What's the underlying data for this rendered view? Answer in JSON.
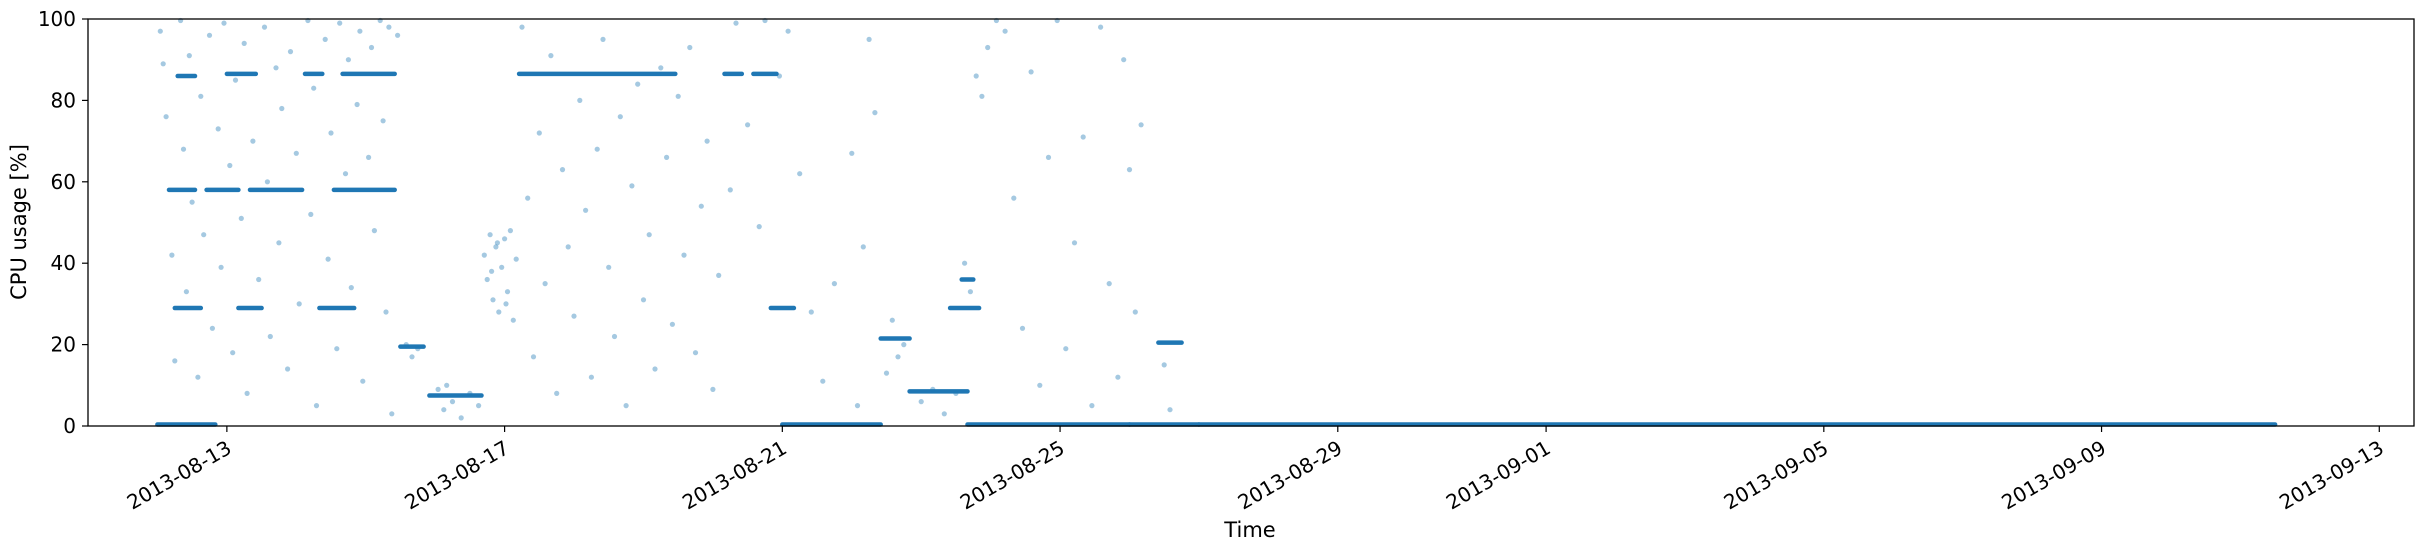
{
  "chart_data": {
    "type": "scatter",
    "title": "",
    "xlabel": "Time",
    "ylabel": "CPU usage [%]",
    "xlim": [
      "2013-08-11T00:00",
      "2013-09-13T12:00"
    ],
    "ylim": [
      0,
      100
    ],
    "grid": false,
    "color": "#1f77b4",
    "point_alpha": 0.4,
    "x_ticks": [
      "2013-08-13",
      "2013-08-17",
      "2013-08-21",
      "2013-08-25",
      "2013-08-29",
      "2013-09-01",
      "2013-09-05",
      "2013-09-09",
      "2013-09-13"
    ],
    "y_ticks": [
      0,
      20,
      40,
      60,
      80,
      100
    ],
    "series": [
      {
        "segments": [
          {
            "start": "2013-08-12T00:00",
            "end": "2013-08-12T20:00",
            "y": 0.3
          },
          {
            "start": "2013-08-12T04:00",
            "end": "2013-08-12T13:00",
            "y": 58
          },
          {
            "start": "2013-08-12T06:00",
            "end": "2013-08-12T15:00",
            "y": 29
          },
          {
            "start": "2013-08-12T07:00",
            "end": "2013-08-12T13:00",
            "y": 86
          },
          {
            "start": "2013-08-12T17:00",
            "end": "2013-08-13T04:00",
            "y": 58
          },
          {
            "start": "2013-08-13T00:00",
            "end": "2013-08-13T10:00",
            "y": 86.5
          },
          {
            "start": "2013-08-13T04:00",
            "end": "2013-08-13T12:00",
            "y": 29
          },
          {
            "start": "2013-08-13T08:00",
            "end": "2013-08-14T02:00",
            "y": 58
          },
          {
            "start": "2013-08-14T03:00",
            "end": "2013-08-14T09:00",
            "y": 86.5
          },
          {
            "start": "2013-08-14T08:00",
            "end": "2013-08-14T20:00",
            "y": 29
          },
          {
            "start": "2013-08-14T13:00",
            "end": "2013-08-15T10:00",
            "y": 58
          },
          {
            "start": "2013-08-14T16:00",
            "end": "2013-08-15T10:00",
            "y": 86.5
          },
          {
            "start": "2013-08-15T12:00",
            "end": "2013-08-15T20:00",
            "y": 19.5
          },
          {
            "start": "2013-08-15T22:00",
            "end": "2013-08-16T16:00",
            "y": 7.5
          },
          {
            "start": "2013-08-17T05:00",
            "end": "2013-08-19T11:00",
            "y": 86.5
          },
          {
            "start": "2013-08-20T04:00",
            "end": "2013-08-20T10:00",
            "y": 86.5
          },
          {
            "start": "2013-08-20T14:00",
            "end": "2013-08-20T22:00",
            "y": 86.5
          },
          {
            "start": "2013-08-20T20:00",
            "end": "2013-08-21T04:00",
            "y": 29
          },
          {
            "start": "2013-08-21T00:00",
            "end": "2013-08-22T10:00",
            "y": 0.3
          },
          {
            "start": "2013-08-22T10:00",
            "end": "2013-08-22T20:00",
            "y": 21.5
          },
          {
            "start": "2013-08-22T20:00",
            "end": "2013-08-23T16:00",
            "y": 8.5
          },
          {
            "start": "2013-08-23T10:00",
            "end": "2013-08-23T20:00",
            "y": 29
          },
          {
            "start": "2013-08-23T14:00",
            "end": "2013-08-23T18:00",
            "y": 36
          },
          {
            "start": "2013-08-23T16:00",
            "end": "2013-08-26T00:00",
            "y": 0.3
          },
          {
            "start": "2013-08-26T00:00",
            "end": "2013-08-27T00:00",
            "y": 0.2
          },
          {
            "start": "2013-08-26T10:00",
            "end": "2013-08-26T18:00",
            "y": 20.5
          },
          {
            "start": "2013-08-27T00:00",
            "end": "2013-09-11T12:00",
            "y": 0
          }
        ],
        "points": [
          [
            "2013-08-12T01:00",
            97
          ],
          [
            "2013-08-12T02:00",
            89
          ],
          [
            "2013-08-12T03:00",
            76
          ],
          [
            "2013-08-12T05:00",
            42
          ],
          [
            "2013-08-12T06:00",
            16
          ],
          [
            "2013-08-12T08:00",
            100
          ],
          [
            "2013-08-12T09:00",
            68
          ],
          [
            "2013-08-12T10:00",
            33
          ],
          [
            "2013-08-12T11:00",
            91
          ],
          [
            "2013-08-12T12:00",
            55
          ],
          [
            "2013-08-12T14:00",
            12
          ],
          [
            "2013-08-12T15:00",
            81
          ],
          [
            "2013-08-12T16:00",
            47
          ],
          [
            "2013-08-12T18:00",
            96
          ],
          [
            "2013-08-12T19:00",
            24
          ],
          [
            "2013-08-12T21:00",
            73
          ],
          [
            "2013-08-12T22:00",
            39
          ],
          [
            "2013-08-12T23:00",
            99
          ],
          [
            "2013-08-13T01:00",
            64
          ],
          [
            "2013-08-13T02:00",
            18
          ],
          [
            "2013-08-13T03:00",
            85
          ],
          [
            "2013-08-13T05:00",
            51
          ],
          [
            "2013-08-13T06:00",
            94
          ],
          [
            "2013-08-13T07:00",
            8
          ],
          [
            "2013-08-13T09:00",
            70
          ],
          [
            "2013-08-13T11:00",
            36
          ],
          [
            "2013-08-13T13:00",
            98
          ],
          [
            "2013-08-13T14:00",
            60
          ],
          [
            "2013-08-13T15:00",
            22
          ],
          [
            "2013-08-13T17:00",
            88
          ],
          [
            "2013-08-13T18:00",
            45
          ],
          [
            "2013-08-13T19:00",
            78
          ],
          [
            "2013-08-13T21:00",
            14
          ],
          [
            "2013-08-13T22:00",
            92
          ],
          [
            "2013-08-14T00:00",
            67
          ],
          [
            "2013-08-14T01:00",
            30
          ],
          [
            "2013-08-14T04:00",
            100
          ],
          [
            "2013-08-14T05:00",
            52
          ],
          [
            "2013-08-14T06:00",
            83
          ],
          [
            "2013-08-14T07:00",
            5
          ],
          [
            "2013-08-14T10:00",
            95
          ],
          [
            "2013-08-14T11:00",
            41
          ],
          [
            "2013-08-14T12:00",
            72
          ],
          [
            "2013-08-14T14:00",
            19
          ],
          [
            "2013-08-14T15:00",
            99
          ],
          [
            "2013-08-14T17:00",
            62
          ],
          [
            "2013-08-14T18:00",
            90
          ],
          [
            "2013-08-14T19:00",
            34
          ],
          [
            "2013-08-14T21:00",
            79
          ],
          [
            "2013-08-14T22:00",
            97
          ],
          [
            "2013-08-14T23:00",
            11
          ],
          [
            "2013-08-15T01:00",
            66
          ],
          [
            "2013-08-15T02:00",
            93
          ],
          [
            "2013-08-15T03:00",
            48
          ],
          [
            "2013-08-15T05:00",
            100
          ],
          [
            "2013-08-15T06:00",
            75
          ],
          [
            "2013-08-15T07:00",
            28
          ],
          [
            "2013-08-15T08:00",
            98
          ],
          [
            "2013-08-15T09:00",
            3
          ],
          [
            "2013-08-15T11:00",
            96
          ],
          [
            "2013-08-15T14:00",
            20
          ],
          [
            "2013-08-15T16:00",
            17
          ],
          [
            "2013-08-15T18:00",
            19
          ],
          [
            "2013-08-16T01:00",
            9
          ],
          [
            "2013-08-16T03:00",
            4
          ],
          [
            "2013-08-16T06:00",
            6
          ],
          [
            "2013-08-16T09:00",
            2
          ],
          [
            "2013-08-16T12:00",
            8
          ],
          [
            "2013-08-16T15:00",
            5
          ],
          [
            "2013-08-16T04:00",
            10
          ],
          [
            "2013-08-16T17:00",
            42
          ],
          [
            "2013-08-16T18:00",
            36
          ],
          [
            "2013-08-16T19:00",
            47
          ],
          [
            "2013-08-16T20:00",
            31
          ],
          [
            "2013-08-16T21:00",
            44
          ],
          [
            "2013-08-16T22:00",
            28
          ],
          [
            "2013-08-16T23:00",
            39
          ],
          [
            "2013-08-17T00:00",
            46
          ],
          [
            "2013-08-17T01:00",
            33
          ],
          [
            "2013-08-17T02:00",
            48
          ],
          [
            "2013-08-17T03:00",
            26
          ],
          [
            "2013-08-17T04:00",
            41
          ],
          [
            "2013-08-16T19:30",
            38
          ],
          [
            "2013-08-16T21:30",
            45
          ],
          [
            "2013-08-17T00:30",
            30
          ],
          [
            "2013-08-17T06:00",
            98
          ],
          [
            "2013-08-17T08:00",
            56
          ],
          [
            "2013-08-17T10:00",
            17
          ],
          [
            "2013-08-17T12:00",
            72
          ],
          [
            "2013-08-17T14:00",
            35
          ],
          [
            "2013-08-17T16:00",
            91
          ],
          [
            "2013-08-17T18:00",
            8
          ],
          [
            "2013-08-17T20:00",
            63
          ],
          [
            "2013-08-17T22:00",
            44
          ],
          [
            "2013-08-18T00:00",
            27
          ],
          [
            "2013-08-18T02:00",
            80
          ],
          [
            "2013-08-18T04:00",
            53
          ],
          [
            "2013-08-18T06:00",
            12
          ],
          [
            "2013-08-18T08:00",
            68
          ],
          [
            "2013-08-18T10:00",
            95
          ],
          [
            "2013-08-18T12:00",
            39
          ],
          [
            "2013-08-18T14:00",
            22
          ],
          [
            "2013-08-18T16:00",
            76
          ],
          [
            "2013-08-18T18:00",
            5
          ],
          [
            "2013-08-18T20:00",
            59
          ],
          [
            "2013-08-18T22:00",
            84
          ],
          [
            "2013-08-19T00:00",
            31
          ],
          [
            "2013-08-19T02:00",
            47
          ],
          [
            "2013-08-19T04:00",
            14
          ],
          [
            "2013-08-19T06:00",
            88
          ],
          [
            "2013-08-19T08:00",
            66
          ],
          [
            "2013-08-19T10:00",
            25
          ],
          [
            "2013-08-19T12:00",
            81
          ],
          [
            "2013-08-19T14:00",
            42
          ],
          [
            "2013-08-19T16:00",
            93
          ],
          [
            "2013-08-19T18:00",
            18
          ],
          [
            "2013-08-19T20:00",
            54
          ],
          [
            "2013-08-19T22:00",
            70
          ],
          [
            "2013-08-20T00:00",
            9
          ],
          [
            "2013-08-20T02:00",
            37
          ],
          [
            "2013-08-20T06:00",
            58
          ],
          [
            "2013-08-20T08:00",
            99
          ],
          [
            "2013-08-20T12:00",
            74
          ],
          [
            "2013-08-20T16:00",
            49
          ],
          [
            "2013-08-20T18:00",
            100
          ],
          [
            "2013-08-20T23:00",
            86
          ],
          [
            "2013-08-21T02:00",
            97
          ],
          [
            "2013-08-21T06:00",
            62
          ],
          [
            "2013-08-21T10:00",
            28
          ],
          [
            "2013-08-21T14:00",
            11
          ],
          [
            "2013-08-21T18:00",
            35
          ],
          [
            "2013-08-22T00:00",
            67
          ],
          [
            "2013-08-22T04:00",
            44
          ],
          [
            "2013-08-22T06:00",
            95
          ],
          [
            "2013-08-22T08:00",
            77
          ],
          [
            "2013-08-22T02:00",
            5
          ],
          [
            "2013-08-22T12:00",
            13
          ],
          [
            "2013-08-22T14:00",
            26
          ],
          [
            "2013-08-22T16:00",
            17
          ],
          [
            "2013-08-22T18:00",
            20
          ],
          [
            "2013-08-23T00:00",
            6
          ],
          [
            "2013-08-23T04:00",
            9
          ],
          [
            "2013-08-23T08:00",
            3
          ],
          [
            "2013-08-23T12:00",
            8
          ],
          [
            "2013-08-23T15:00",
            40
          ],
          [
            "2013-08-23T17:00",
            33
          ],
          [
            "2013-08-23T19:00",
            86
          ],
          [
            "2013-08-23T21:00",
            81
          ],
          [
            "2013-08-23T23:00",
            93
          ],
          [
            "2013-08-24T02:00",
            100
          ],
          [
            "2013-08-24T05:00",
            97
          ],
          [
            "2013-08-24T08:00",
            56
          ],
          [
            "2013-08-24T11:00",
            24
          ],
          [
            "2013-08-24T14:00",
            87
          ],
          [
            "2013-08-24T17:00",
            10
          ],
          [
            "2013-08-24T20:00",
            66
          ],
          [
            "2013-08-24T23:00",
            100
          ],
          [
            "2013-08-25T02:00",
            19
          ],
          [
            "2013-08-25T05:00",
            45
          ],
          [
            "2013-08-25T08:00",
            71
          ],
          [
            "2013-08-25T11:00",
            5
          ],
          [
            "2013-08-25T14:00",
            98
          ],
          [
            "2013-08-25T17:00",
            35
          ],
          [
            "2013-08-25T20:00",
            12
          ],
          [
            "2013-08-25T22:00",
            90
          ],
          [
            "2013-08-26T00:00",
            63
          ],
          [
            "2013-08-26T02:00",
            28
          ],
          [
            "2013-08-26T04:00",
            74
          ],
          [
            "2013-08-26T12:00",
            15
          ],
          [
            "2013-08-26T14:00",
            4
          ]
        ]
      }
    ]
  }
}
